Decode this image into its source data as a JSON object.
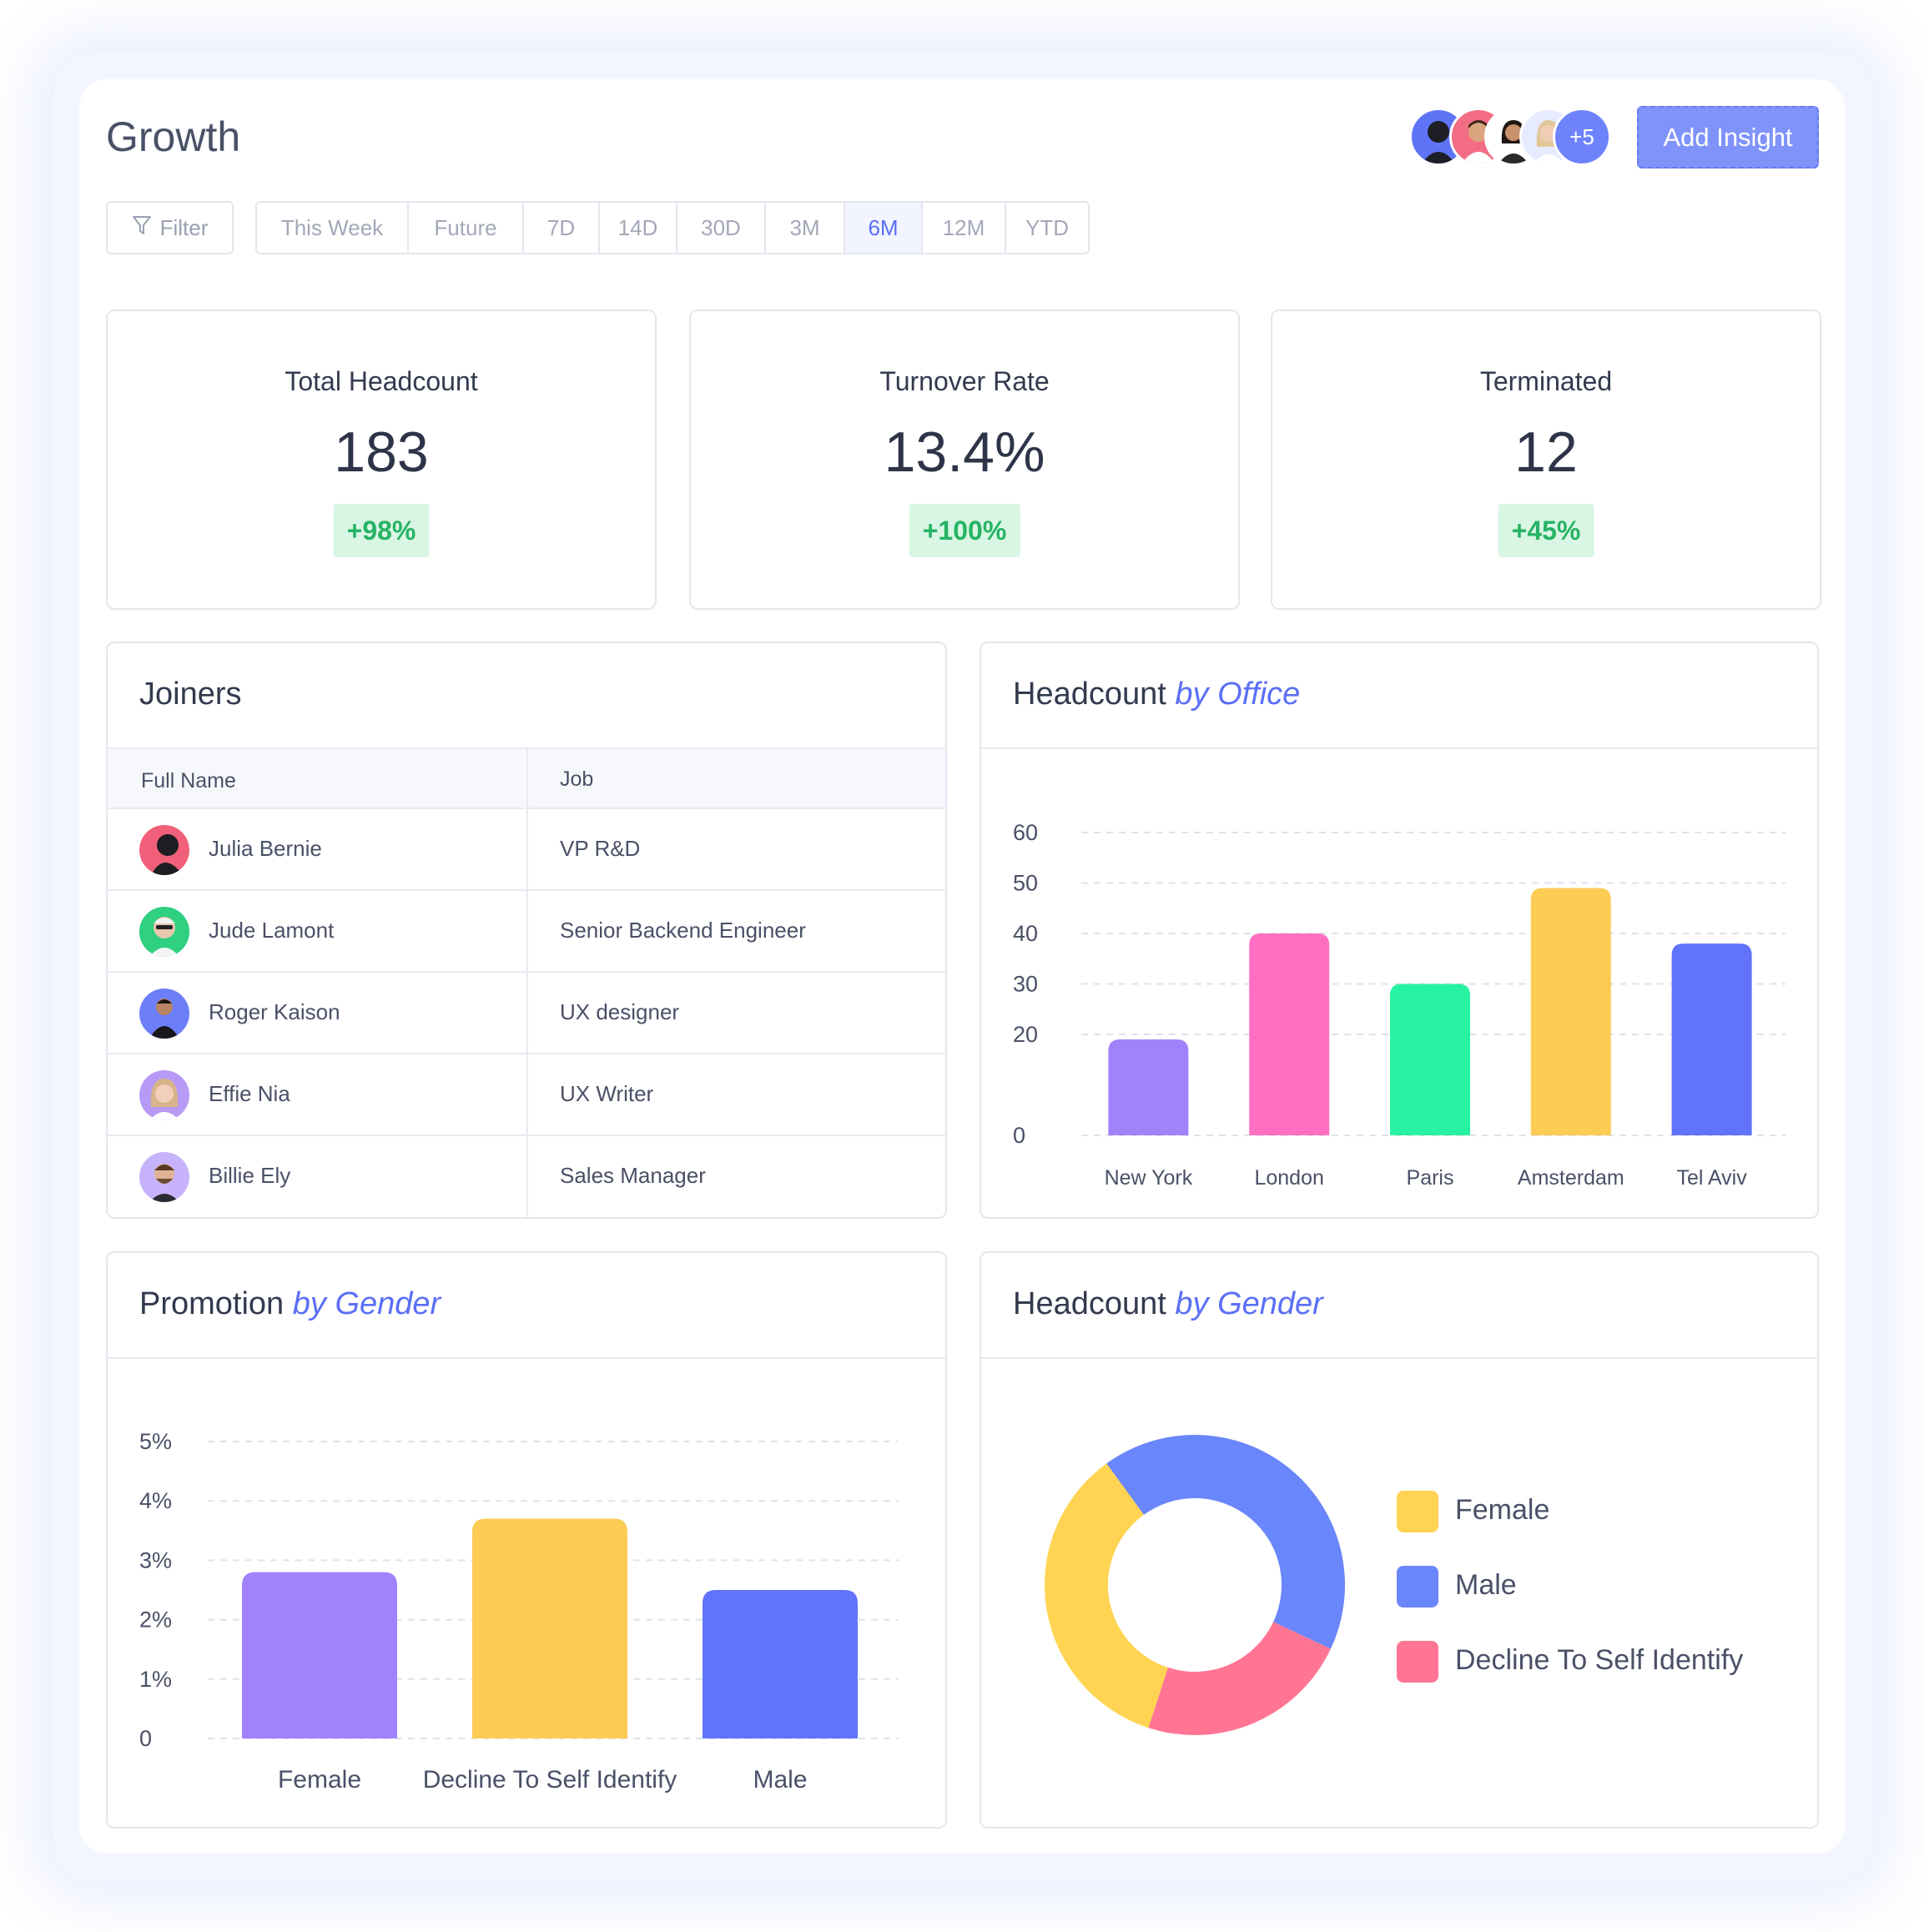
{
  "header": {
    "title": "Growth",
    "more_avatars": "+5",
    "add_insight": "Add Insight"
  },
  "toolbar": {
    "filter_label": "Filter",
    "periods": [
      "This Week",
      "Future",
      "7D",
      "14D",
      "30D",
      "3M",
      "6M",
      "12M",
      "YTD"
    ],
    "active_period": "6M"
  },
  "kpis": [
    {
      "label": "Total Headcount",
      "value": "183",
      "delta": "+98%"
    },
    {
      "label": "Turnover Rate",
      "value": "13.4%",
      "delta": "+100%"
    },
    {
      "label": "Terminated",
      "value": "12",
      "delta": "+45%"
    }
  ],
  "joiners": {
    "title": "Joiners",
    "columns": [
      "Full Name",
      "Job"
    ],
    "rows": [
      {
        "name": "Julia Bernie",
        "job": "VP R&D",
        "avatar_color": "#f0607a"
      },
      {
        "name": "Jude Lamont",
        "job": "Senior Backend Engineer",
        "avatar_color": "#2fd07f"
      },
      {
        "name": "Roger Kaison",
        "job": "UX designer",
        "avatar_color": "#6c7ff8"
      },
      {
        "name": "Effie Nia",
        "job": "UX Writer",
        "avatar_color": "#b69af5"
      },
      {
        "name": "Billie Ely",
        "job": "Sales Manager",
        "avatar_color": "#c7b3fb"
      }
    ]
  },
  "office_panel": {
    "title_main": "Headcount",
    "title_em": "by Office"
  },
  "promotion_panel": {
    "title_main": "Promotion",
    "title_em": "by Gender"
  },
  "gender_panel": {
    "title_main": "Headcount",
    "title_em": "by Gender"
  },
  "colors": {
    "accent": "#5b6ff5",
    "purple": "#a282fb",
    "pink": "#ff6fc1",
    "green": "#27f2a1",
    "yellow": "#fdcc55",
    "blue": "#6172fb",
    "donut_blue": "#6a86fb",
    "donut_yellow": "#ffd452",
    "donut_pink": "#ff7593",
    "delta_bg": "#d9f6e4",
    "delta_text": "#27b364"
  },
  "chart_data": [
    {
      "type": "bar",
      "categories": [
        "New York",
        "London",
        "Paris",
        "Amsterdam",
        "Tel Aviv"
      ],
      "values": [
        19,
        40,
        30,
        49,
        38
      ],
      "ylim": [
        0,
        60
      ],
      "yticks": [
        "0",
        "20",
        "30",
        "40",
        "50",
        "60"
      ],
      "grid": true,
      "bar_colors": [
        "#a282fb",
        "#ff6fc1",
        "#27f2a1",
        "#fdcc55",
        "#6172fb"
      ]
    },
    {
      "type": "bar",
      "categories": [
        "Female",
        "Decline To Self Identify",
        "Male"
      ],
      "values": [
        2.8,
        3.7,
        2.5
      ],
      "ylim": [
        0,
        5
      ],
      "yticks": [
        "0",
        "1%",
        "2%",
        "3%",
        "4%",
        "5%"
      ],
      "grid": true,
      "bar_colors": [
        "#a282fb",
        "#fdcc55",
        "#6172fb"
      ]
    },
    {
      "type": "pie",
      "categories": [
        "Female",
        "Male",
        "Decline To Self Identify"
      ],
      "values": [
        35,
        42,
        23
      ],
      "colors": [
        "#ffd452",
        "#6a86fb",
        "#ff7593"
      ],
      "legend": "right"
    }
  ]
}
